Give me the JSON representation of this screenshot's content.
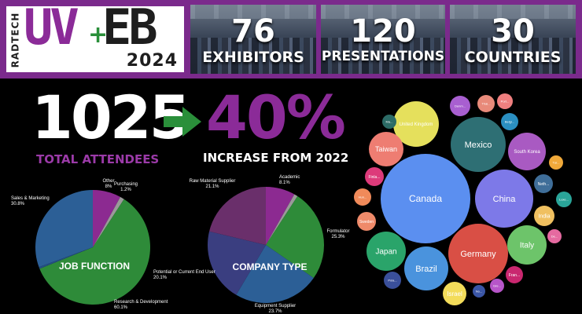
{
  "logo": {
    "side_text": "RADTECH",
    "uv": "UV",
    "plus": "+",
    "eb": "EB",
    "year": "2024"
  },
  "stats": [
    {
      "number": "76",
      "label": "EXHIBITORS"
    },
    {
      "number": "120",
      "label": "PRESENTATIONS"
    },
    {
      "number": "30",
      "label": "COUNTRIES"
    }
  ],
  "attendees": {
    "number": "1025",
    "label": "TOTAL ATTENDEES",
    "arrow_icon": "right-arrow-icon"
  },
  "increase": {
    "number": "40%",
    "label": "INCREASE FROM 2022"
  },
  "colors": {
    "band": "#7b2a8c",
    "purple": "#8b2b98",
    "green": "#2a8f3a",
    "accent_purple": "#9b3aa8"
  },
  "chart_data": [
    {
      "type": "pie",
      "title": "JOB FUNCTION",
      "slices": [
        {
          "label": "Other",
          "value": 8.0,
          "display": "8%",
          "color": "#8c2a91"
        },
        {
          "label": "Purchasing",
          "value": 1.2,
          "display": "1.2%",
          "color": "#9a9a9a"
        },
        {
          "label": "Research & Development",
          "value": 60.1,
          "display": "60.1%",
          "color": "#2e8b39"
        },
        {
          "label": "Potential or Current End User",
          "value": 0.5,
          "display": "",
          "color": "#244e84"
        },
        {
          "label": "Sales & Marketing",
          "value": 30.8,
          "display": "30.8%",
          "color": "#2c5f96"
        }
      ]
    },
    {
      "type": "pie",
      "title": "COMPANY TYPE",
      "slices": [
        {
          "label": "Academic",
          "value": 8.1,
          "display": "8.1%",
          "color": "#8c2a91"
        },
        {
          "label": "Academic_gap",
          "value": 1.0,
          "display": "",
          "color": "#9a9a9a"
        },
        {
          "label": "Formulator",
          "value": 25.3,
          "display": "25.3%",
          "color": "#2e8b39"
        },
        {
          "label": "Equipment Supplier",
          "value": 23.7,
          "display": "23.7%",
          "color": "#2c5f96"
        },
        {
          "label": "Potential or Current End User",
          "value": 20.1,
          "display": "20.1%",
          "color": "#3a3e80"
        },
        {
          "label": "Raw Material Supplier",
          "value": 21.1,
          "display": "21.1%",
          "color": "#6a2f6b"
        }
      ]
    },
    {
      "type": "bubble",
      "title": "",
      "bubbles": [
        {
          "label": "Canada",
          "color": "#5b8ff0"
        },
        {
          "label": "Germany",
          "color": "#d94f45"
        },
        {
          "label": "China",
          "color": "#7d79e8"
        },
        {
          "label": "Mexico",
          "color": "#2e6f74"
        },
        {
          "label": "United Kingdom",
          "color": "#e5e05c"
        },
        {
          "label": "Brazil",
          "color": "#4a93dd"
        },
        {
          "label": "Italy",
          "color": "#6dc46a"
        },
        {
          "label": "Japan",
          "color": "#2aa46a"
        },
        {
          "label": "South Korea",
          "color": "#a95ac2"
        },
        {
          "label": "Taiwan",
          "color": "#ee7d72"
        },
        {
          "label": "Israel",
          "color": "#f3dc5a"
        },
        {
          "label": "India",
          "color": "#f0c060"
        },
        {
          "label": "Neth...",
          "color": "#3f6e99"
        },
        {
          "label": "Denm...",
          "color": "#a85fd0"
        },
        {
          "label": "Thai...",
          "color": "#e88a7a"
        },
        {
          "label": "Sweden",
          "color": "#ef8a6a"
        },
        {
          "label": "Finla...",
          "color": "#dd3a7a"
        },
        {
          "label": "Belgi...",
          "color": "#2b8fc1"
        },
        {
          "label": "Fran...",
          "color": "#c9276f"
        },
        {
          "label": "Luxe...",
          "color": "#2aa599"
        },
        {
          "label": "Pola...",
          "color": "#3a4f9a"
        },
        {
          "label": "Port...",
          "color": "#ef7f7f"
        },
        {
          "label": "Hun...",
          "color": "#f08a5a"
        },
        {
          "label": "Ma...",
          "color": "#2c6b66"
        },
        {
          "label": "Tur...",
          "color": "#f0a93a"
        },
        {
          "label": "De...",
          "color": "#e56aa0"
        },
        {
          "label": "Gre...",
          "color": "#b755c9"
        },
        {
          "label": "No...",
          "color": "#3b56a6"
        }
      ]
    }
  ]
}
